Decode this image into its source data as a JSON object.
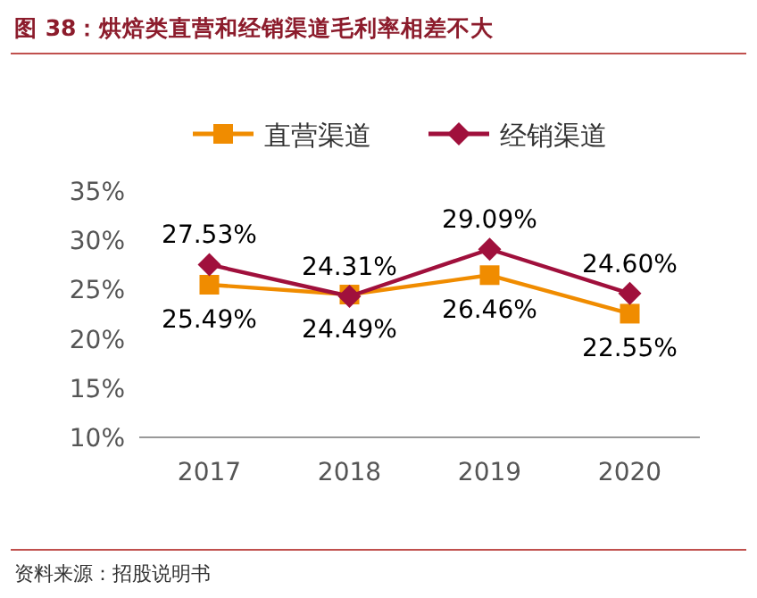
{
  "chart_data": {
    "type": "line",
    "title": "图 38：烘焙类直营和经销渠道毛利率相差不大",
    "categories": [
      "2017",
      "2018",
      "2019",
      "2020"
    ],
    "series": [
      {
        "name": "直营渠道",
        "color": "#f08c00",
        "marker": "square",
        "values": [
          25.49,
          24.49,
          26.46,
          22.55
        ],
        "value_labels": [
          "25.49%",
          "24.49%",
          "26.46%",
          "22.55%"
        ]
      },
      {
        "name": "经销渠道",
        "color": "#a0103c",
        "marker": "diamond",
        "values": [
          27.53,
          24.31,
          29.09,
          24.6
        ],
        "value_labels": [
          "27.53%",
          "24.31%",
          "29.09%",
          "24.60%"
        ]
      }
    ],
    "ylim": [
      10,
      35
    ],
    "yticks": [
      {
        "value": 10,
        "label": "10%"
      },
      {
        "value": 15,
        "label": "15%"
      },
      {
        "value": 20,
        "label": "20%"
      },
      {
        "value": 25,
        "label": "25%"
      },
      {
        "value": 30,
        "label": "30%"
      },
      {
        "value": 35,
        "label": "35%"
      }
    ],
    "legend": "top",
    "grid": false,
    "annotations": [
      "资料来源：招股说明书"
    ]
  }
}
